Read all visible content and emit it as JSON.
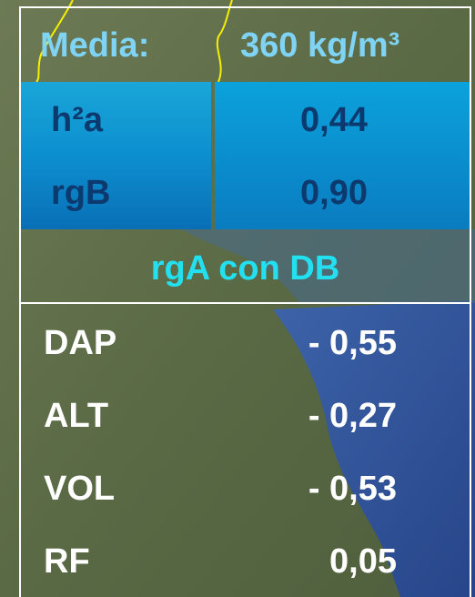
{
  "header": {
    "label": "Media:",
    "value": "360 kg/m³"
  },
  "heritability": {
    "rows": [
      [
        "h²a",
        "0,44"
      ],
      [
        "rgB",
        "0,90"
      ]
    ]
  },
  "correlations": {
    "title": "rgA con DB",
    "rows": [
      [
        "DAP",
        "- 0,55"
      ],
      [
        "ALT",
        "- 0,27"
      ],
      [
        "VOL",
        "- 0,53"
      ],
      [
        "RF",
        "0,05"
      ]
    ]
  }
}
